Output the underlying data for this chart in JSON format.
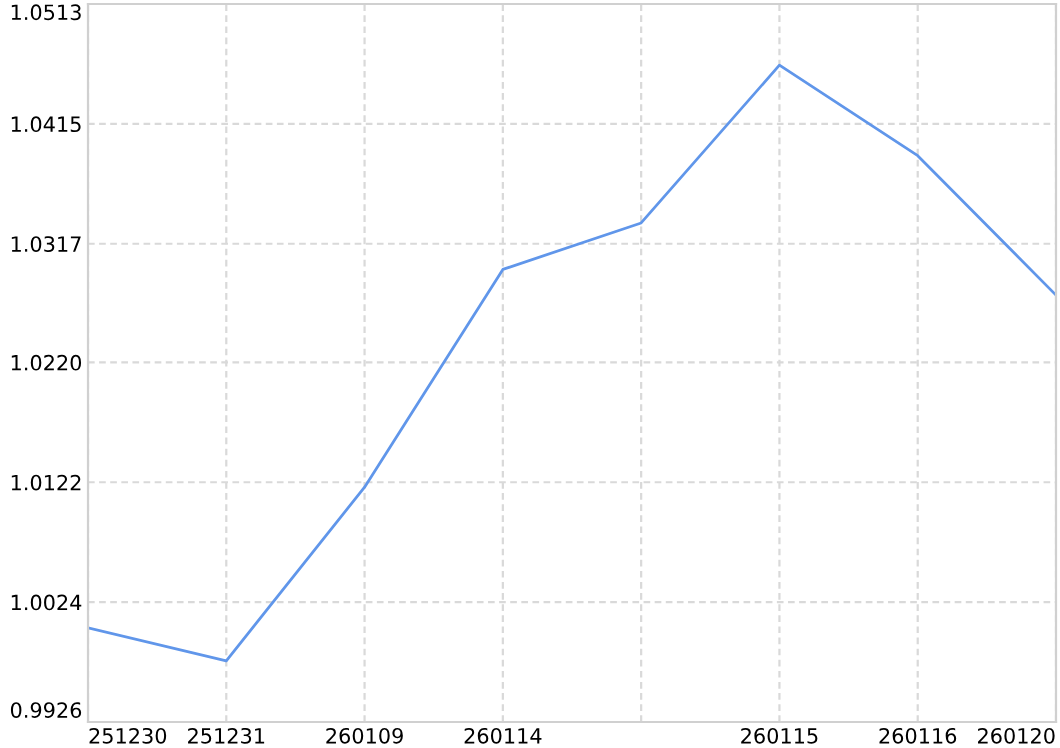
{
  "chart_data": {
    "type": "line",
    "categories": [
      "251230",
      "251231",
      "260109",
      "260114",
      null,
      "260115",
      "260116",
      "260120"
    ],
    "series": [
      {
        "color": "#6096ea",
        "values": [
          1.0003,
          0.9976,
          1.0118,
          1.0296,
          1.0334,
          1.0463,
          1.0389,
          1.0275
        ]
      }
    ],
    "ylim": [
      0.9926,
      1.0513
    ],
    "yticks": [
      {
        "value": 0.9926,
        "label": "0.9926"
      },
      {
        "value": 1.0024,
        "label": "1.0024"
      },
      {
        "value": 1.0122,
        "label": "1.0122"
      },
      {
        "value": 1.022,
        "label": "1.0220"
      },
      {
        "value": 1.0317,
        "label": "1.0317"
      },
      {
        "value": 1.0415,
        "label": "1.0415"
      },
      {
        "value": 1.0513,
        "label": "1.0513"
      }
    ],
    "grid": true,
    "marker": "none",
    "line_style": "solid"
  }
}
